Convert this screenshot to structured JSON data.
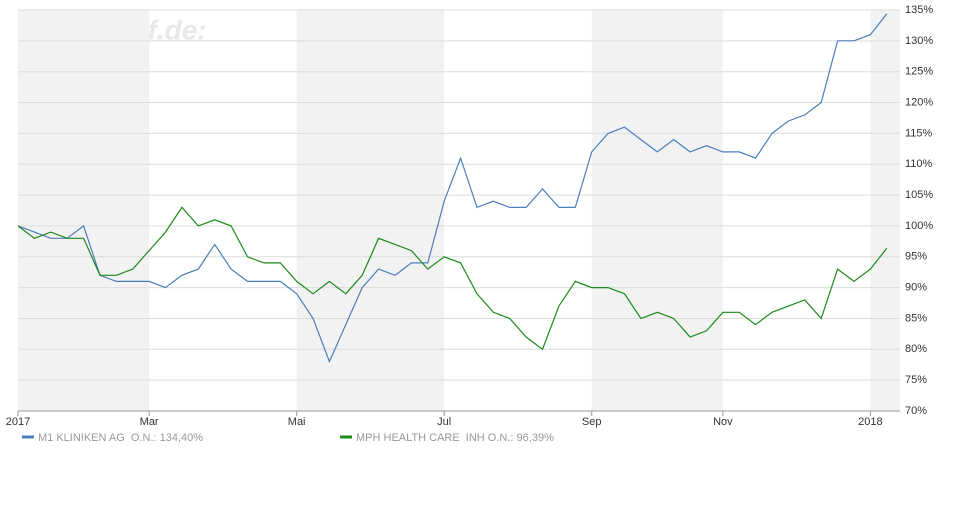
{
  "chart_data": {
    "type": "line",
    "watermark": "finanztreff.de:",
    "categories": [
      "2017",
      null,
      null,
      null,
      null,
      null,
      null,
      null,
      "Mar",
      null,
      null,
      null,
      null,
      null,
      null,
      null,
      null,
      "Mai",
      null,
      null,
      null,
      null,
      null,
      null,
      null,
      null,
      "Jul",
      null,
      null,
      null,
      null,
      null,
      null,
      null,
      null,
      "Sep",
      null,
      null,
      null,
      null,
      null,
      null,
      null,
      "Nov",
      null,
      null,
      null,
      null,
      null,
      null,
      null,
      null,
      "2018",
      null
    ],
    "series": [
      {
        "name": "M1 KLINIKEN AG  O.N.: 134,40%",
        "color": "#4a7ebb",
        "values": [
          100,
          99,
          98,
          98,
          100,
          92,
          91,
          91,
          91,
          90,
          92,
          93,
          97,
          93,
          91,
          91,
          91,
          89,
          85,
          78,
          84,
          90,
          93,
          92,
          94,
          94,
          104,
          111,
          103,
          104,
          103,
          103,
          106,
          103,
          103,
          112,
          115,
          116,
          114,
          112,
          114,
          112,
          113,
          112,
          112,
          111,
          115,
          117,
          118,
          120,
          130,
          130,
          131,
          134.4
        ]
      },
      {
        "name": "MPH HEALTH CARE  INH O.N.: 96,39%",
        "color": "#1a8a1a",
        "values": [
          100,
          98,
          99,
          98,
          98,
          92,
          92,
          93,
          96,
          99,
          103,
          100,
          101,
          100,
          95,
          94,
          94,
          91,
          89,
          91,
          89,
          92,
          98,
          97,
          96,
          93,
          95,
          94,
          89,
          86,
          85,
          82,
          80,
          87,
          91,
          90,
          90,
          89,
          85,
          86,
          85,
          82,
          83,
          86,
          86,
          84,
          86,
          87,
          88,
          85,
          93,
          91,
          93,
          96.39
        ]
      }
    ],
    "ylim": [
      70,
      135
    ],
    "yticks": [
      {
        "value": 70,
        "label": "70%"
      },
      {
        "value": 75,
        "label": "75%"
      },
      {
        "value": 80,
        "label": "80%"
      },
      {
        "value": 85,
        "label": "85%"
      },
      {
        "value": 90,
        "label": "90%"
      },
      {
        "value": 95,
        "label": "95%"
      },
      {
        "value": 100,
        "label": "100%"
      },
      {
        "value": 105,
        "label": "105%"
      },
      {
        "value": 110,
        "label": "110%"
      },
      {
        "value": 115,
        "label": "115%"
      },
      {
        "value": 120,
        "label": "120%"
      },
      {
        "value": 125,
        "label": "125%"
      },
      {
        "value": 130,
        "label": "130%"
      },
      {
        "value": 135,
        "label": "135%"
      }
    ],
    "grid": true
  }
}
